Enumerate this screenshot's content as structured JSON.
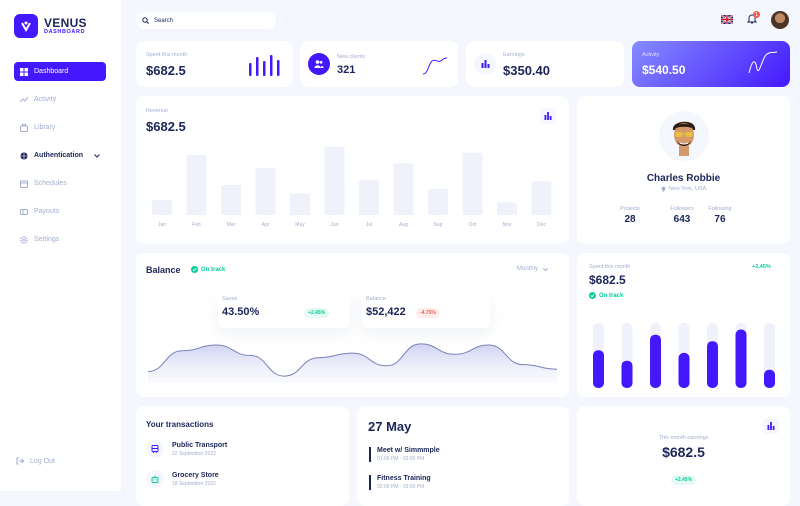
{
  "brand": {
    "title": "VENUS",
    "subtitle": "DASHBOARD"
  },
  "sidebar": {
    "items": [
      {
        "label": "Dashboard",
        "icon": "grid-icon"
      },
      {
        "label": "Activity",
        "icon": "chart-line-icon"
      },
      {
        "label": "Library",
        "icon": "briefcase-icon"
      },
      {
        "label": "Authentication",
        "icon": "shield-icon"
      },
      {
        "label": "Schedules",
        "icon": "calendar-icon"
      },
      {
        "label": "Payouts",
        "icon": "card-icon"
      },
      {
        "label": "Settings",
        "icon": "gear-icon"
      }
    ],
    "logout": "Log Out"
  },
  "topbar": {
    "search_placeholder": "Search",
    "notifications_count": "1"
  },
  "stats": {
    "spent": {
      "label": "Spent this month",
      "value": "$682.5"
    },
    "clients": {
      "label": "New clients",
      "value": "321"
    },
    "earnings": {
      "label": "Earnings",
      "value": "$350.40"
    },
    "activity": {
      "label": "Activity",
      "value": "$540.50"
    }
  },
  "revenue": {
    "label": "Revenue",
    "value": "$682.5",
    "chart_data": {
      "type": "bar",
      "categories": [
        "Jan",
        "Feb",
        "Mar",
        "Apr",
        "May",
        "Jun",
        "Jul",
        "Aug",
        "Sep",
        "Oct",
        "Nov",
        "Dec"
      ],
      "values": [
        25,
        100,
        50,
        78,
        36,
        114,
        58,
        86,
        44,
        104,
        21,
        56
      ],
      "ylim": [
        0,
        120
      ],
      "grid": false
    }
  },
  "profile": {
    "name": "Charles Robbie",
    "location": "New York, USA",
    "stats": [
      {
        "label": "Projects",
        "value": "28"
      },
      {
        "label": "Followers",
        "value": "643"
      },
      {
        "label": "Following",
        "value": "76"
      }
    ]
  },
  "balance": {
    "title": "Balance",
    "status": "On track",
    "period": "Monthly",
    "metrics": [
      {
        "label": "Saves",
        "value": "43.50%",
        "change": "+2.45%",
        "trend": "up"
      },
      {
        "label": "Balance",
        "value": "$52,422",
        "change": "-4.75%",
        "trend": "down"
      }
    ],
    "chart_data": {
      "type": "area",
      "x": [
        0,
        1,
        2,
        3,
        4,
        5,
        6,
        7,
        8,
        9,
        10,
        11,
        12
      ],
      "series": [
        {
          "values": [
            10,
            28,
            33,
            24,
            6,
            22,
            26,
            15,
            34,
            25,
            33,
            16,
            12
          ]
        }
      ],
      "ylim": [
        0,
        40
      ],
      "grid": false
    }
  },
  "weekly": {
    "label": "Spent this month",
    "value": "$682.5",
    "status": "On track",
    "change": "+2.45%",
    "chart_data": {
      "type": "bar",
      "categories": [
        "1",
        "2",
        "3",
        "4",
        "5",
        "6",
        "7"
      ],
      "series": [
        {
          "values": [
            58,
            42,
            82,
            54,
            72,
            90,
            28
          ]
        }
      ],
      "ylim": [
        0,
        100
      ]
    }
  },
  "transactions": {
    "title": "Your transactions",
    "items": [
      {
        "name": "Public Transport",
        "date": "22 September 2022",
        "icon": "bus-icon"
      },
      {
        "name": "Grocery Store",
        "date": "18 September 2022",
        "icon": "robot-icon"
      }
    ]
  },
  "calendar": {
    "date": "27 May",
    "events": [
      {
        "title": "Meet w/ Simmmple",
        "time": "01:00 PM - 02:00 PM"
      },
      {
        "title": "Fitness Training",
        "time": "02:00 PM - 03:00 PM"
      }
    ]
  },
  "monthly": {
    "label": "This month earnings",
    "value": "$682.5",
    "change": "+2.45%"
  },
  "colors": {
    "accent": "#4318ff",
    "navy": "#1b2559",
    "muted": "#a3aed0",
    "green": "#05cd99",
    "red": "#ee5d50",
    "bar_bg": "#eff1fb"
  }
}
